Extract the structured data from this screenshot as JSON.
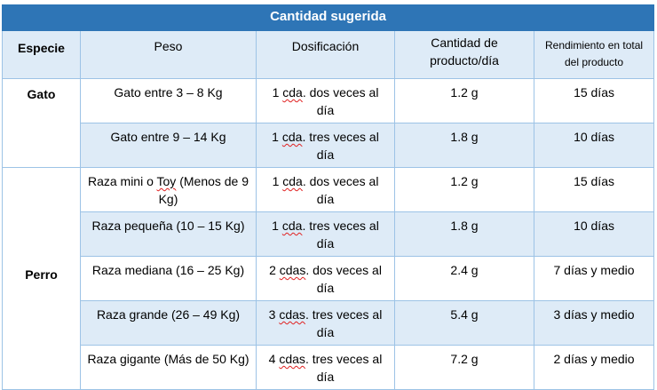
{
  "title": "Cantidad sugerida",
  "headers": {
    "especie": "Especie",
    "peso": "Peso",
    "dosificacion": "Dosificación",
    "cantidad": "Cantidad de producto/día",
    "rendimiento": "Rendimiento en total del producto"
  },
  "groups": {
    "gato": "Gato",
    "perro": "Perro"
  },
  "rows": [
    {
      "peso": "Gato entre 3 – 8 Kg",
      "dosis_qty": "1",
      "dosis_unit": "cda",
      "dosis_rest": ". dos veces al día",
      "cantidad": "1.2 g",
      "rendimiento": "15 días"
    },
    {
      "peso": "Gato entre 9 – 14 Kg",
      "dosis_qty": "1",
      "dosis_unit": "cda",
      "dosis_rest": ". tres veces al día",
      "cantidad": "1.8 g",
      "rendimiento": "10 días"
    },
    {
      "peso_a": "Raza mini o ",
      "peso_sq": "Toy",
      "peso_b": " (Menos de 9 Kg)",
      "dosis_qty": "1",
      "dosis_unit": "cda",
      "dosis_rest": ". dos veces al día",
      "cantidad": "1.2 g",
      "rendimiento": "15 días"
    },
    {
      "peso": "Raza pequeña (10 – 15 Kg)",
      "dosis_qty": "1",
      "dosis_unit": "cda",
      "dosis_rest": ". tres veces al día",
      "cantidad": "1.8 g",
      "rendimiento": "10 días"
    },
    {
      "peso": "Raza mediana (16 – 25 Kg)",
      "dosis_qty": "2",
      "dosis_unit": "cdas",
      "dosis_rest": ". dos veces al día",
      "cantidad": "2.4 g",
      "rendimiento": "7 días y medio"
    },
    {
      "peso": "Raza grande (26 – 49 Kg)",
      "dosis_qty": "3",
      "dosis_unit": "cdas",
      "dosis_rest": ". tres veces al día",
      "cantidad": "5.4 g",
      "rendimiento": "3 días  y medio"
    },
    {
      "peso": "Raza gigante (Más de 50 Kg)",
      "dosis_qty": "4",
      "dosis_unit": "cdas",
      "dosis_rest": ". tres veces al día",
      "cantidad": "7.2 g",
      "rendimiento": "2 días y medio"
    }
  ],
  "colors": {
    "title_bg": "#2e75b6",
    "header_bg": "#deebf7",
    "border": "#9dc3e6"
  }
}
